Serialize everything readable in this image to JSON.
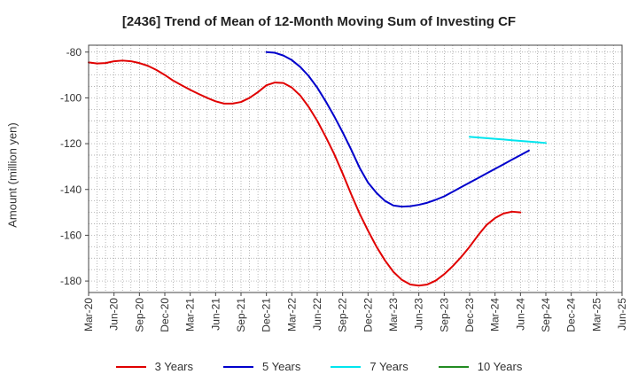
{
  "chart_data": {
    "type": "line",
    "title": "[2436]  Trend of Mean of 12-Month Moving Sum of Investing CF",
    "xlabel": "",
    "ylabel": "Amount (million yen)",
    "ylim": [
      -185,
      -77
    ],
    "yticks": [
      -80,
      -100,
      -120,
      -140,
      -160,
      -180
    ],
    "x_tick_labels": [
      "Mar-20",
      "Jun-20",
      "Sep-20",
      "Dec-20",
      "Mar-21",
      "Jun-21",
      "Sep-21",
      "Dec-21",
      "Mar-22",
      "Jun-22",
      "Sep-22",
      "Dec-22",
      "Mar-23",
      "Jun-23",
      "Sep-23",
      "Dec-23",
      "Mar-24",
      "Jun-24",
      "Sep-24",
      "Dec-24",
      "Mar-25",
      "Jun-25"
    ],
    "x_start": "Mar-20",
    "x_end": "Jun-25",
    "grid": true,
    "series": [
      {
        "name": "3 Years",
        "color": "#e00000",
        "start_index": 0,
        "values": [
          -84.5,
          -85,
          -84.8,
          -84,
          -83.7,
          -84,
          -84.8,
          -86,
          -87.8,
          -90,
          -92.5,
          -94.5,
          -96.5,
          -98.3,
          -100,
          -101.5,
          -102.5,
          -102.5,
          -101.8,
          -100,
          -97.5,
          -94.5,
          -93.3,
          -93.5,
          -95.5,
          -99,
          -104,
          -110,
          -117,
          -124.5,
          -133,
          -142,
          -150.5,
          -158,
          -165,
          -171,
          -176,
          -179.5,
          -181.5,
          -182,
          -181.5,
          -179.8,
          -177,
          -173.5,
          -169.5,
          -165,
          -160,
          -155.5,
          -152.5,
          -150.5,
          -149.7,
          -150
        ]
      },
      {
        "name": "5 Years",
        "color": "#0000cc",
        "start_index": 21,
        "values": [
          -80,
          -80.3,
          -81.5,
          -83.5,
          -86.5,
          -90.5,
          -95.5,
          -101.5,
          -108,
          -115,
          -122.5,
          -130.5,
          -137,
          -141.5,
          -145,
          -147,
          -147.5,
          -147.3,
          -146.7,
          -145.8,
          -144.5,
          -143,
          -141,
          -139,
          -137,
          -135,
          -133,
          -131,
          -129,
          -127,
          -125,
          -123
        ]
      },
      {
        "name": "7 Years",
        "color": "#00e5ee",
        "start_index": 45,
        "values": [
          -117,
          -117.3,
          -117.6,
          -117.9,
          -118.2,
          -118.5,
          -118.8,
          -119.1,
          -119.4,
          -119.7
        ]
      },
      {
        "name": "10 Years",
        "color": "#228b22",
        "start_index": 0,
        "values": []
      }
    ]
  }
}
